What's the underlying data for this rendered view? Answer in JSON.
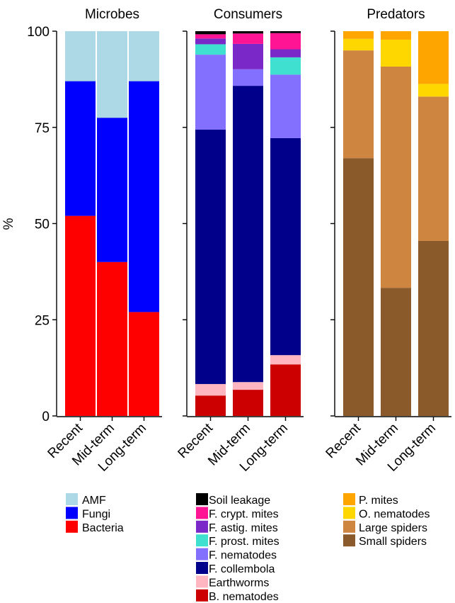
{
  "chart_data": [
    {
      "type": "bar",
      "stacked": true,
      "title": "Microbes",
      "ylabel": "%",
      "ylim": [
        0,
        100
      ],
      "yticks": [
        0,
        25,
        50,
        75,
        100
      ],
      "categories": [
        "Recent",
        "Mid-term",
        "Long-term"
      ],
      "series": [
        {
          "name": "Bacteria",
          "color": "#ff0000",
          "values": [
            52,
            40,
            27
          ]
        },
        {
          "name": "Fungi",
          "color": "#0000ff",
          "values": [
            35,
            37.5,
            60
          ]
        },
        {
          "name": "AMF",
          "color": "#add8e6",
          "values": [
            13,
            22.5,
            13
          ]
        }
      ],
      "legend_position": "below"
    },
    {
      "type": "bar",
      "stacked": true,
      "title": "Consumers",
      "ylim": [
        0,
        100
      ],
      "categories": [
        "Recent",
        "Mid-term",
        "Long-term"
      ],
      "series": [
        {
          "name": "B. nematodes",
          "color": "#cc0000",
          "values": [
            5.3,
            6.8,
            13.4
          ]
        },
        {
          "name": "Earthworms",
          "color": "#ffb6c1",
          "values": [
            3.0,
            2.0,
            2.4
          ]
        },
        {
          "name": "F. collembola",
          "color": "#00008b",
          "values": [
            66.1,
            77.0,
            56.4
          ]
        },
        {
          "name": "F. nematodes",
          "color": "#8470ff",
          "values": [
            19.5,
            4.3,
            16.5
          ]
        },
        {
          "name": "F. prost. mites",
          "color": "#40e0d0",
          "values": [
            2.7,
            0,
            4.5
          ]
        },
        {
          "name": "F. astig. mites",
          "color": "#7b28c8",
          "values": [
            1.5,
            6.6,
            2.1
          ]
        },
        {
          "name": "F. crypt. mites",
          "color": "#ff1493",
          "values": [
            1.1,
            2.7,
            4.2
          ]
        },
        {
          "name": "Soil leakage",
          "color": "#000000",
          "values": [
            0.8,
            0.6,
            0.5
          ]
        }
      ],
      "legend_position": "below"
    },
    {
      "type": "bar",
      "stacked": true,
      "title": "Predators",
      "ylim": [
        0,
        100
      ],
      "categories": [
        "Recent",
        "Mid-term",
        "Long-term"
      ],
      "series": [
        {
          "name": "Small spiders",
          "color": "#8b5a2b",
          "values": [
            67,
            33.3,
            45.5
          ]
        },
        {
          "name": "Large spiders",
          "color": "#cd853f",
          "values": [
            28,
            57.5,
            37.5
          ]
        },
        {
          "name": "O. nematodes",
          "color": "#ffd700",
          "values": [
            3,
            7,
            3.3
          ]
        },
        {
          "name": "P. mites",
          "color": "#ffa500",
          "values": [
            2,
            2.2,
            13.7
          ]
        }
      ],
      "legend_position": "below"
    }
  ]
}
